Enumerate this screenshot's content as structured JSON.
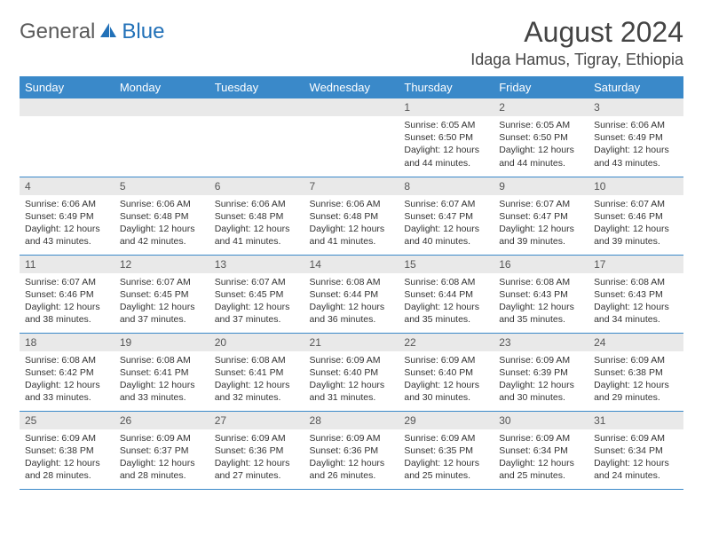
{
  "logo": {
    "general": "General",
    "blue": "Blue"
  },
  "title": "August 2024",
  "location": "Idaga Hamus, Tigray, Ethiopia",
  "colors": {
    "header_bg": "#3a89c9",
    "header_text": "#ffffff",
    "daynum_bg": "#e9e9e9",
    "border": "#3a89c9",
    "logo_gray": "#5a5a5a",
    "logo_blue": "#2271b8"
  },
  "weekdays": [
    "Sunday",
    "Monday",
    "Tuesday",
    "Wednesday",
    "Thursday",
    "Friday",
    "Saturday"
  ],
  "weeks": [
    [
      null,
      null,
      null,
      null,
      {
        "n": "1",
        "sr": "6:05 AM",
        "ss": "6:50 PM",
        "dl": "12 hours and 44 minutes."
      },
      {
        "n": "2",
        "sr": "6:05 AM",
        "ss": "6:50 PM",
        "dl": "12 hours and 44 minutes."
      },
      {
        "n": "3",
        "sr": "6:06 AM",
        "ss": "6:49 PM",
        "dl": "12 hours and 43 minutes."
      }
    ],
    [
      {
        "n": "4",
        "sr": "6:06 AM",
        "ss": "6:49 PM",
        "dl": "12 hours and 43 minutes."
      },
      {
        "n": "5",
        "sr": "6:06 AM",
        "ss": "6:48 PM",
        "dl": "12 hours and 42 minutes."
      },
      {
        "n": "6",
        "sr": "6:06 AM",
        "ss": "6:48 PM",
        "dl": "12 hours and 41 minutes."
      },
      {
        "n": "7",
        "sr": "6:06 AM",
        "ss": "6:48 PM",
        "dl": "12 hours and 41 minutes."
      },
      {
        "n": "8",
        "sr": "6:07 AM",
        "ss": "6:47 PM",
        "dl": "12 hours and 40 minutes."
      },
      {
        "n": "9",
        "sr": "6:07 AM",
        "ss": "6:47 PM",
        "dl": "12 hours and 39 minutes."
      },
      {
        "n": "10",
        "sr": "6:07 AM",
        "ss": "6:46 PM",
        "dl": "12 hours and 39 minutes."
      }
    ],
    [
      {
        "n": "11",
        "sr": "6:07 AM",
        "ss": "6:46 PM",
        "dl": "12 hours and 38 minutes."
      },
      {
        "n": "12",
        "sr": "6:07 AM",
        "ss": "6:45 PM",
        "dl": "12 hours and 37 minutes."
      },
      {
        "n": "13",
        "sr": "6:07 AM",
        "ss": "6:45 PM",
        "dl": "12 hours and 37 minutes."
      },
      {
        "n": "14",
        "sr": "6:08 AM",
        "ss": "6:44 PM",
        "dl": "12 hours and 36 minutes."
      },
      {
        "n": "15",
        "sr": "6:08 AM",
        "ss": "6:44 PM",
        "dl": "12 hours and 35 minutes."
      },
      {
        "n": "16",
        "sr": "6:08 AM",
        "ss": "6:43 PM",
        "dl": "12 hours and 35 minutes."
      },
      {
        "n": "17",
        "sr": "6:08 AM",
        "ss": "6:43 PM",
        "dl": "12 hours and 34 minutes."
      }
    ],
    [
      {
        "n": "18",
        "sr": "6:08 AM",
        "ss": "6:42 PM",
        "dl": "12 hours and 33 minutes."
      },
      {
        "n": "19",
        "sr": "6:08 AM",
        "ss": "6:41 PM",
        "dl": "12 hours and 33 minutes."
      },
      {
        "n": "20",
        "sr": "6:08 AM",
        "ss": "6:41 PM",
        "dl": "12 hours and 32 minutes."
      },
      {
        "n": "21",
        "sr": "6:09 AM",
        "ss": "6:40 PM",
        "dl": "12 hours and 31 minutes."
      },
      {
        "n": "22",
        "sr": "6:09 AM",
        "ss": "6:40 PM",
        "dl": "12 hours and 30 minutes."
      },
      {
        "n": "23",
        "sr": "6:09 AM",
        "ss": "6:39 PM",
        "dl": "12 hours and 30 minutes."
      },
      {
        "n": "24",
        "sr": "6:09 AM",
        "ss": "6:38 PM",
        "dl": "12 hours and 29 minutes."
      }
    ],
    [
      {
        "n": "25",
        "sr": "6:09 AM",
        "ss": "6:38 PM",
        "dl": "12 hours and 28 minutes."
      },
      {
        "n": "26",
        "sr": "6:09 AM",
        "ss": "6:37 PM",
        "dl": "12 hours and 28 minutes."
      },
      {
        "n": "27",
        "sr": "6:09 AM",
        "ss": "6:36 PM",
        "dl": "12 hours and 27 minutes."
      },
      {
        "n": "28",
        "sr": "6:09 AM",
        "ss": "6:36 PM",
        "dl": "12 hours and 26 minutes."
      },
      {
        "n": "29",
        "sr": "6:09 AM",
        "ss": "6:35 PM",
        "dl": "12 hours and 25 minutes."
      },
      {
        "n": "30",
        "sr": "6:09 AM",
        "ss": "6:34 PM",
        "dl": "12 hours and 25 minutes."
      },
      {
        "n": "31",
        "sr": "6:09 AM",
        "ss": "6:34 PM",
        "dl": "12 hours and 24 minutes."
      }
    ]
  ],
  "labels": {
    "sunrise": "Sunrise:",
    "sunset": "Sunset:",
    "daylight": "Daylight:"
  }
}
